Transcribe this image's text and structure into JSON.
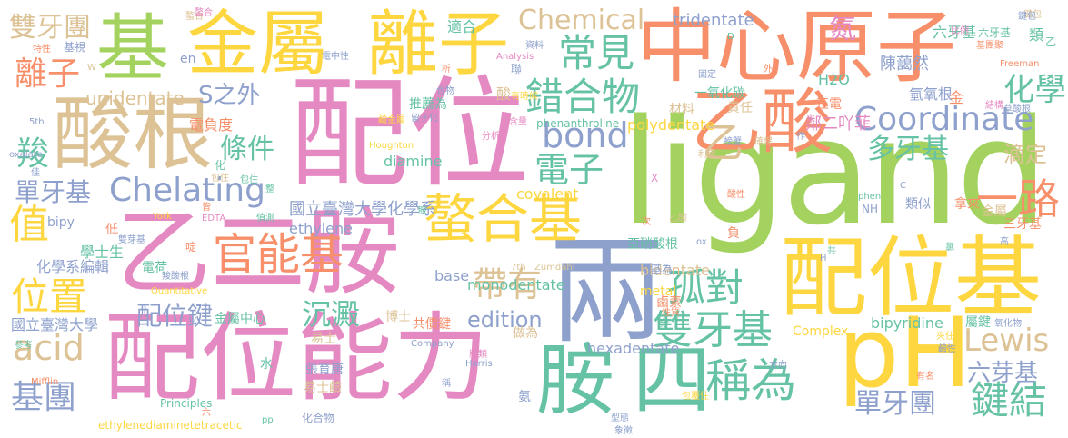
{
  "palette": {
    "green": "#a3d25e",
    "yellow": "#fdd640",
    "orange": "#f68f6a",
    "pink": "#e589c2",
    "tan": "#dcc294",
    "blue": "#8ea0cc",
    "teal": "#66c2a5"
  },
  "words": [
    {
      "text": "配位",
      "color": "pink"
    },
    {
      "text": "ligand",
      "color": "green"
    },
    {
      "text": "中心",
      "color": "orange"
    },
    {
      "text": "原子",
      "color": "orange"
    },
    {
      "text": "基",
      "color": "green"
    },
    {
      "text": "金屬",
      "color": "yellow"
    },
    {
      "text": "離子",
      "color": "yellow"
    },
    {
      "text": "酸根",
      "color": "tan"
    },
    {
      "text": "乙二胺",
      "color": "pink"
    },
    {
      "text": "配位能力",
      "color": "pink"
    },
    {
      "text": "兩",
      "color": "blue"
    },
    {
      "text": "配位基",
      "color": "yellow"
    },
    {
      "text": "乙酸",
      "color": "orange"
    },
    {
      "text": "pH",
      "color": "yellow"
    },
    {
      "text": "胺",
      "color": "teal"
    },
    {
      "text": "四",
      "color": "teal"
    },
    {
      "text": "螯合基",
      "color": "yellow"
    },
    {
      "text": "官能基",
      "color": "orange"
    },
    {
      "text": "Chelating",
      "color": "blue"
    },
    {
      "text": "Coordinate",
      "color": "blue"
    },
    {
      "text": "bond",
      "color": "blue"
    },
    {
      "text": "常見",
      "color": "teal"
    },
    {
      "text": "錯合物",
      "color": "teal"
    },
    {
      "text": "Chemical",
      "color": "tan"
    },
    {
      "text": "稱為",
      "color": "teal"
    },
    {
      "text": "雙牙基",
      "color": "teal"
    },
    {
      "text": "孤對",
      "color": "teal"
    },
    {
      "text": "帶有",
      "color": "tan"
    },
    {
      "text": "電子",
      "color": "teal"
    },
    {
      "text": "Lewis",
      "color": "tan"
    },
    {
      "text": "一路",
      "color": "orange"
    },
    {
      "text": "化學",
      "color": "teal"
    },
    {
      "text": "鍵結",
      "color": "teal"
    },
    {
      "text": "位置",
      "color": "yellow"
    },
    {
      "text": "acid",
      "color": "tan"
    },
    {
      "text": "基團",
      "color": "blue"
    },
    {
      "text": "值",
      "color": "yellow"
    },
    {
      "text": "離子",
      "color": "orange"
    },
    {
      "text": "雙牙團",
      "color": "tan"
    },
    {
      "text": "條件",
      "color": "teal"
    },
    {
      "text": "S之外",
      "color": "blue"
    },
    {
      "text": "多牙基",
      "color": "teal"
    },
    {
      "text": "單牙基",
      "color": "blue"
    },
    {
      "text": "單牙團",
      "color": "blue"
    },
    {
      "text": "六芽基",
      "color": "blue"
    },
    {
      "text": "羧",
      "color": "teal"
    },
    {
      "text": "配位鍵",
      "color": "blue"
    },
    {
      "text": "沉澱",
      "color": "teal"
    },
    {
      "text": "edition",
      "color": "blue"
    },
    {
      "text": "滴定",
      "color": "tan"
    },
    {
      "text": "氮",
      "color": "pink"
    },
    {
      "text": "乙",
      "color": "tan"
    },
    {
      "text": "六牙基",
      "color": "teal"
    },
    {
      "text": "類",
      "color": "teal"
    },
    {
      "text": "陳藹然",
      "color": "blue"
    },
    {
      "text": "tridentate",
      "color": "blue"
    },
    {
      "text": "適合",
      "color": "teal"
    },
    {
      "text": "unidentate",
      "color": "tan"
    },
    {
      "text": "氫氧根",
      "color": "blue"
    },
    {
      "text": "H2O",
      "color": "teal"
    },
    {
      "text": "一氧化碳",
      "color": "teal"
    },
    {
      "text": "鄰二吖菲",
      "color": "pink"
    },
    {
      "text": "責任",
      "color": "tan"
    },
    {
      "text": "正電",
      "color": "orange"
    },
    {
      "text": "金",
      "color": "orange"
    },
    {
      "text": "材料",
      "color": "tan"
    },
    {
      "text": "推薦為",
      "color": "teal"
    },
    {
      "text": "電負度",
      "color": "orange"
    },
    {
      "text": "國立臺灣大學化學系",
      "color": "blue"
    },
    {
      "text": "ethylene",
      "color": "blue"
    },
    {
      "text": "covalent",
      "color": "yellow"
    },
    {
      "text": "diamine",
      "color": "teal"
    },
    {
      "text": "phenanthroline",
      "color": "teal"
    },
    {
      "text": "polydentate",
      "color": "yellow"
    },
    {
      "text": "拿來",
      "color": "orange"
    },
    {
      "text": "類似",
      "color": "blue"
    },
    {
      "text": "金屬",
      "color": "tan"
    },
    {
      "text": "三牙基",
      "color": "orange"
    },
    {
      "text": "學士生",
      "color": "teal"
    },
    {
      "text": "編輯",
      "color": "blue"
    },
    {
      "text": "化學系",
      "color": "blue"
    },
    {
      "text": "電荷",
      "color": "teal"
    },
    {
      "text": "國立臺灣大學",
      "color": "blue"
    },
    {
      "text": "金屬中心",
      "color": "teal"
    },
    {
      "text": "易士",
      "color": "tan"
    },
    {
      "text": "博士",
      "color": "tan"
    },
    {
      "text": "共價鍵",
      "color": "orange"
    },
    {
      "text": "monodentate",
      "color": "teal"
    },
    {
      "text": "base",
      "color": "blue"
    },
    {
      "text": "bidentate",
      "color": "tan"
    },
    {
      "text": "亞硝酸根",
      "color": "teal"
    },
    {
      "text": "hexadentate",
      "color": "blue"
    },
    {
      "text": "bipyridine",
      "color": "teal"
    },
    {
      "text": "屬鍵",
      "color": "teal"
    },
    {
      "text": "Complex",
      "color": "yellow"
    },
    {
      "text": "做為",
      "color": "tan"
    },
    {
      "text": "張育唐",
      "color": "blue"
    },
    {
      "text": "易士鹼",
      "color": "tan"
    },
    {
      "text": "化合物",
      "color": "blue"
    },
    {
      "text": "水",
      "color": "teal"
    },
    {
      "text": "氨",
      "color": "blue"
    },
    {
      "text": "酸",
      "color": "tan"
    },
    {
      "text": "bipy",
      "color": "blue"
    },
    {
      "text": "低",
      "color": "orange"
    },
    {
      "text": "EDTA",
      "color": "pink"
    },
    {
      "text": "York",
      "color": "yellow"
    },
    {
      "text": "Zumdahl",
      "color": "tan"
    },
    {
      "text": "7th",
      "color": "tan"
    },
    {
      "text": "metal",
      "color": "yellow"
    },
    {
      "text": "鹵素",
      "color": "orange"
    },
    {
      "text": "基為",
      "color": "blue"
    },
    {
      "text": "oxalate",
      "color": "blue"
    },
    {
      "text": "5th",
      "color": "blue"
    },
    {
      "text": "Quantitative",
      "color": "yellow"
    },
    {
      "text": "Houghton",
      "color": "yellow"
    },
    {
      "text": "Mifflin",
      "color": "orange"
    },
    {
      "text": "Principles",
      "color": "teal"
    },
    {
      "text": "ethylenediaminetetracetic",
      "color": "yellow"
    },
    {
      "text": "Harris",
      "color": "blue"
    },
    {
      "text": "Company",
      "color": "blue"
    },
    {
      "text": "Freeman",
      "color": "orange"
    },
    {
      "text": "Analysis",
      "color": "pink"
    },
    {
      "text": "en",
      "color": "blue"
    },
    {
      "text": "NH",
      "color": "blue"
    },
    {
      "text": "phen",
      "color": "teal"
    },
    {
      "text": "ox",
      "color": "blue"
    },
    {
      "text": "六牙基",
      "color": "teal"
    },
    {
      "text": "基團聚",
      "color": "orange"
    },
    {
      "text": "鍵包",
      "color": "tan"
    },
    {
      "text": "結構",
      "color": "pink"
    },
    {
      "text": "草酸根",
      "color": "blue"
    },
    {
      "text": "螯合",
      "color": "tan"
    },
    {
      "text": "電中性",
      "color": "blue"
    },
    {
      "text": "資料",
      "color": "blue"
    },
    {
      "text": "析",
      "color": "orange"
    },
    {
      "text": "聯",
      "color": "blue"
    },
    {
      "text": "固定",
      "color": "blue"
    },
    {
      "text": "外",
      "color": "orange"
    },
    {
      "text": "比例",
      "color": "pink"
    },
    {
      "text": "特性",
      "color": "orange"
    },
    {
      "text": "基視",
      "color": "blue"
    },
    {
      "text": "合物",
      "color": "blue"
    },
    {
      "text": "有時候",
      "color": "yellow"
    },
    {
      "text": "留子化",
      "color": "blue"
    },
    {
      "text": "鹼金屬",
      "color": "yellow"
    },
    {
      "text": "含量",
      "color": "pink"
    },
    {
      "text": "分析",
      "color": "pink"
    },
    {
      "text": "螃蟹",
      "color": "blue"
    },
    {
      "text": "確保",
      "color": "tan"
    },
    {
      "text": "利用",
      "color": "tan"
    },
    {
      "text": "作",
      "color": "blue"
    },
    {
      "text": "佳",
      "color": "blue"
    },
    {
      "text": "包住",
      "color": "teal"
    },
    {
      "text": "整",
      "color": "teal"
    },
    {
      "text": "酸性",
      "color": "orange"
    },
    {
      "text": "乙酸",
      "color": "tan"
    },
    {
      "text": "次",
      "color": "orange"
    },
    {
      "text": "共",
      "color": "teal"
    },
    {
      "text": "氯",
      "color": "teal"
    },
    {
      "text": "高",
      "color": "blue"
    },
    {
      "text": "氧化物",
      "color": "blue"
    },
    {
      "text": "夾住",
      "color": "yellow"
    },
    {
      "text": "鹼性",
      "color": "blue"
    },
    {
      "text": "方向",
      "color": "blue"
    },
    {
      "text": "有名",
      "color": "orange"
    },
    {
      "text": "包覆住",
      "color": "yellow"
    },
    {
      "text": "稱",
      "color": "blue"
    },
    {
      "text": "型態",
      "color": "blue"
    },
    {
      "text": "象徵",
      "color": "blue"
    },
    {
      "text": "負",
      "color": "orange"
    },
    {
      "text": "分",
      "color": "teal"
    },
    {
      "text": "性質",
      "color": "orange"
    },
    {
      "text": "羧酸根",
      "color": "blue"
    },
    {
      "text": "雙芽基",
      "color": "blue"
    },
    {
      "text": "啶",
      "color": "orange"
    },
    {
      "text": "皆",
      "color": "orange"
    },
    {
      "text": "化",
      "color": "teal"
    },
    {
      "text": "包住",
      "color": "tan"
    },
    {
      "text": "偵測",
      "color": "teal"
    },
    {
      "text": "六",
      "color": "orange"
    },
    {
      "text": "pp",
      "color": "teal"
    },
    {
      "text": "胺",
      "color": "teal"
    },
    {
      "text": "螯合",
      "color": "pink"
    },
    {
      "text": "參考",
      "color": "teal"
    },
    {
      "text": "W",
      "color": "tan"
    },
    {
      "text": "X",
      "color": "pink"
    },
    {
      "text": "C",
      "color": "blue"
    },
    {
      "text": "D",
      "color": "teal"
    },
    {
      "text": "H",
      "color": "blue"
    },
    {
      "text": "乙",
      "color": "teal"
    },
    {
      "text": "鍵包",
      "color": "blue"
    },
    {
      "text": "胺類",
      "color": "pink"
    }
  ]
}
